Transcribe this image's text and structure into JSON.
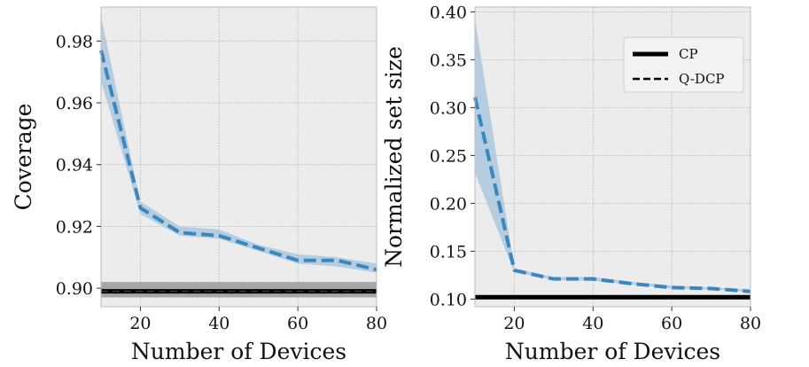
{
  "chart_data": [
    {
      "type": "line",
      "xlabel": "Number of Devices",
      "ylabel": "Coverage",
      "xlim": [
        10,
        80
      ],
      "ylim": [
        0.894,
        0.991
      ],
      "xticks": [
        20,
        40,
        60,
        80
      ],
      "xtick_labels": [
        "20",
        "40",
        "60",
        "80"
      ],
      "yticks": [
        0.9,
        0.92,
        0.94,
        0.96,
        0.98
      ],
      "ytick_labels": [
        "0.90",
        "0.92",
        "0.94",
        "0.96",
        "0.98"
      ],
      "grid": true,
      "series": [
        {
          "name": "CP",
          "style": "solid",
          "color": "#000000",
          "x": [
            10,
            80
          ],
          "values": [
            0.899,
            0.899
          ],
          "band_lower": [
            0.897,
            0.897
          ],
          "band_upper": [
            0.902,
            0.902
          ]
        },
        {
          "name": "Q-DCP",
          "style": "dashed",
          "color": "#3a87c0",
          "x": [
            10,
            20,
            30,
            40,
            50,
            60,
            70,
            80
          ],
          "values": [
            0.977,
            0.926,
            0.918,
            0.917,
            0.913,
            0.909,
            0.909,
            0.906
          ],
          "band_lower": [
            0.967,
            0.924,
            0.917,
            0.916,
            0.912,
            0.908,
            0.907,
            0.905
          ],
          "band_upper": [
            0.988,
            0.928,
            0.92,
            0.919,
            0.914,
            0.911,
            0.91,
            0.908
          ]
        }
      ]
    },
    {
      "type": "line",
      "xlabel": "Number of Devices",
      "ylabel": "Normalized set size",
      "xlim": [
        10,
        80
      ],
      "ylim": [
        0.092,
        0.405
      ],
      "xticks": [
        20,
        40,
        60,
        80
      ],
      "xtick_labels": [
        "20",
        "40",
        "60",
        "80"
      ],
      "yticks": [
        0.1,
        0.15,
        0.2,
        0.25,
        0.3,
        0.35,
        0.4
      ],
      "ytick_labels": [
        "0.10",
        "0.15",
        "0.20",
        "0.25",
        "0.30",
        "0.35",
        "0.40"
      ],
      "grid": true,
      "legend": {
        "position": "top-right",
        "entries": [
          "CP",
          "Q-DCP"
        ]
      },
      "series": [
        {
          "name": "CP",
          "style": "solid",
          "color": "#000000",
          "x": [
            10,
            80
          ],
          "values": [
            0.102,
            0.102
          ]
        },
        {
          "name": "Q-DCP",
          "style": "dashed",
          "color": "#3a87c0",
          "x": [
            10,
            20,
            30,
            40,
            50,
            60,
            70,
            80
          ],
          "values": [
            0.311,
            0.13,
            0.121,
            0.121,
            0.116,
            0.112,
            0.111,
            0.108
          ],
          "band_lower": [
            0.232,
            0.128,
            0.12,
            0.119,
            0.115,
            0.111,
            0.11,
            0.107
          ],
          "band_upper": [
            0.393,
            0.132,
            0.123,
            0.123,
            0.118,
            0.114,
            0.112,
            0.11
          ]
        }
      ]
    }
  ]
}
